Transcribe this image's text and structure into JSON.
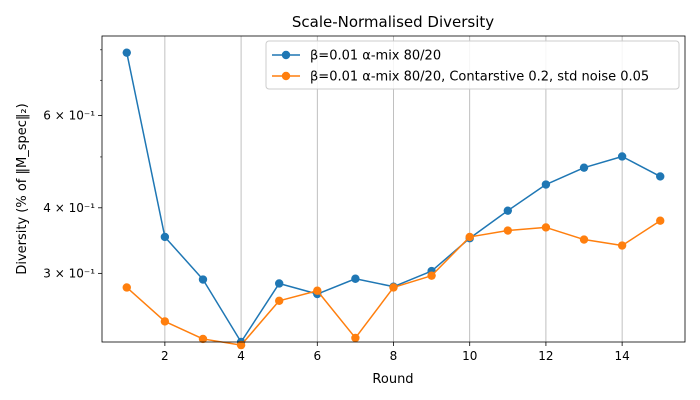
{
  "chart_data": {
    "type": "line",
    "title": "Scale-Normalised Diversity",
    "xlabel": "Round",
    "ylabel": "Diversity (% of ‖M_spec‖₂)",
    "yscale": "log",
    "xlim": [
      0.35,
      15.65
    ],
    "ylim": [
      0.222,
      0.85
    ],
    "x_ticks": [
      2,
      4,
      6,
      8,
      10,
      12,
      14
    ],
    "x_tick_labels": [
      "2",
      "4",
      "6",
      "8",
      "10",
      "12",
      "14"
    ],
    "y_major_ticks": [
      0.3,
      0.4,
      0.6
    ],
    "y_tick_labels": [
      "3 × 10⁻¹",
      "4 × 10⁻¹",
      "6 × 10⁻¹"
    ],
    "y_minor_ticks": [
      0.5,
      0.7,
      0.8
    ],
    "grid": "vertical at x ticks",
    "legend_position": "top-right",
    "x": [
      1,
      2,
      3,
      4,
      5,
      6,
      7,
      8,
      9,
      10,
      11,
      12,
      13,
      14,
      15
    ],
    "series": [
      {
        "name": "β=0.01 α-mix 80/20",
        "color": "#1f77b4",
        "values": [
          0.79,
          0.352,
          0.292,
          0.222,
          0.287,
          0.274,
          0.293,
          0.283,
          0.303,
          0.35,
          0.395,
          0.443,
          0.477,
          0.501,
          0.459
        ]
      },
      {
        "name": "β=0.01 α-mix 80/20, Contarstive 0.2, std noise 0.05",
        "color": "#ff7f0e",
        "values": [
          0.282,
          0.243,
          0.225,
          0.219,
          0.266,
          0.278,
          0.226,
          0.282,
          0.297,
          0.352,
          0.362,
          0.367,
          0.348,
          0.339,
          0.378
        ]
      }
    ]
  }
}
